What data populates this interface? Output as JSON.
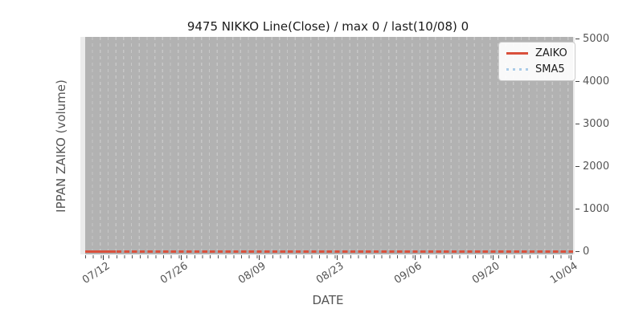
{
  "title": "9475 NIKKO Line(Close) / max 0 / last(10/08) 0",
  "axes": {
    "xlabel": "DATE",
    "ylabel": "IPPAN ZAIKO (volume)",
    "x_tick_labels": [
      "07/12",
      "07/26",
      "08/09",
      "08/23",
      "09/06",
      "09/20",
      "10/04"
    ],
    "y_tick_labels": [
      "0",
      "1000",
      "2000",
      "3000",
      "4000",
      "5000"
    ]
  },
  "legend": {
    "items": [
      {
        "label": "ZAIKO",
        "style": "solid-line"
      },
      {
        "label": "SMA5",
        "style": "dotted-line"
      }
    ]
  },
  "colors": {
    "zaiko": "#d9503c",
    "sma5": "#a9cbe8",
    "plot_bg": "#ebebeb",
    "data_bg": "#b2b2b2",
    "grid": "#c7c7c7",
    "tick_text": "#555555",
    "title_text": "#1c1c1c"
  },
  "chart_data": {
    "type": "line",
    "title": "9475 NIKKO Line(Close) / max 0 / last(10/08) 0",
    "xlabel": "DATE",
    "ylabel": "IPPAN ZAIKO (volume)",
    "x_tick_labels": [
      "07/12",
      "07/26",
      "08/09",
      "08/23",
      "09/06",
      "09/20",
      "10/04"
    ],
    "x_range_note": "daily business-day points from ~07/08 to 10/08, dashed vertical gridline per day",
    "ylim": [
      0,
      5000
    ],
    "y_ticks": [
      0,
      1000,
      2000,
      3000,
      4000,
      5000
    ],
    "y_axis_side": "right",
    "grid": "vertical-dashed",
    "legend_position": "upper-right",
    "series": [
      {
        "name": "ZAIKO",
        "line_style": "solid",
        "color": "#d9503c",
        "values_note": "flat at 0 for entire range",
        "max": 0,
        "last_date": "10/08",
        "last_value": 0
      },
      {
        "name": "SMA5",
        "line_style": "dotted",
        "color": "#a9cbe8",
        "values_note": "flat at 0 for entire range (overlaps ZAIKO)"
      }
    ]
  }
}
